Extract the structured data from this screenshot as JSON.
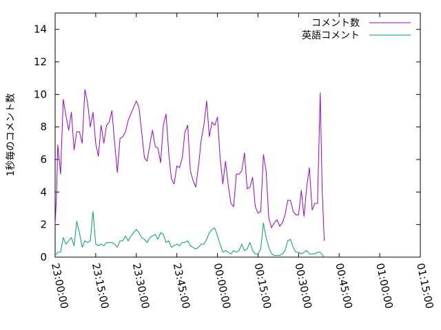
{
  "chart_data": {
    "type": "line",
    "title": "",
    "xlabel": "",
    "ylabel": "1秒毎のコメント数",
    "ylim": [
      0,
      15
    ],
    "yticks": [
      "0",
      "2",
      "4",
      "6",
      "8",
      "10",
      "12",
      "14"
    ],
    "xticks": [
      "23:00:00",
      "23:15:00",
      "23:30:00",
      "23:45:00",
      "00:00:00",
      "00:15:00",
      "00:30:00",
      "00:45:00",
      "01:00:00",
      "01:15:00"
    ],
    "xlim": [
      "23:00:00",
      "01:15:00"
    ],
    "legend_position": "top-right",
    "grid": false,
    "series": [
      {
        "name": "コメント数",
        "color": "#9400d3",
        "points": [
          [
            "23:00:00",
            2.0
          ],
          [
            "23:00:30",
            3.8
          ],
          [
            "23:01:00",
            6.9
          ],
          [
            "23:02:00",
            5.1
          ],
          [
            "23:03:00",
            9.7
          ],
          [
            "23:04:00",
            8.7
          ],
          [
            "23:05:00",
            7.8
          ],
          [
            "23:06:00",
            8.9
          ],
          [
            "23:07:00",
            6.6
          ],
          [
            "23:08:00",
            7.7
          ],
          [
            "23:09:00",
            7.7
          ],
          [
            "23:10:00",
            7.0
          ],
          [
            "23:11:00",
            10.3
          ],
          [
            "23:12:00",
            9.5
          ],
          [
            "23:13:00",
            8.0
          ],
          [
            "23:14:00",
            8.9
          ],
          [
            "23:15:00",
            7.0
          ],
          [
            "23:16:00",
            6.2
          ],
          [
            "23:17:00",
            8.1
          ],
          [
            "23:18:00",
            7.0
          ],
          [
            "23:19:00",
            8.1
          ],
          [
            "23:20:00",
            8.3
          ],
          [
            "23:21:00",
            9.0
          ],
          [
            "23:22:00",
            7.0
          ],
          [
            "23:23:00",
            5.2
          ],
          [
            "23:24:00",
            7.3
          ],
          [
            "23:25:00",
            7.4
          ],
          [
            "23:26:00",
            7.7
          ],
          [
            "23:27:00",
            8.4
          ],
          [
            "23:28:00",
            8.8
          ],
          [
            "23:29:00",
            9.2
          ],
          [
            "23:30:00",
            9.6
          ],
          [
            "23:31:00",
            9.2
          ],
          [
            "23:32:00",
            7.7
          ],
          [
            "23:33:00",
            6.1
          ],
          [
            "23:34:00",
            5.9
          ],
          [
            "23:35:00",
            6.9
          ],
          [
            "23:36:00",
            7.8
          ],
          [
            "23:37:00",
            6.8
          ],
          [
            "23:38:00",
            6.7
          ],
          [
            "23:39:00",
            5.8
          ],
          [
            "23:40:00",
            8.1
          ],
          [
            "23:41:00",
            8.8
          ],
          [
            "23:42:00",
            6.4
          ],
          [
            "23:43:00",
            4.8
          ],
          [
            "23:44:00",
            4.5
          ],
          [
            "23:45:00",
            5.6
          ],
          [
            "23:46:00",
            5.5
          ],
          [
            "23:47:00",
            6.1
          ],
          [
            "23:48:00",
            7.7
          ],
          [
            "23:49:00",
            8.1
          ],
          [
            "23:50:00",
            5.3
          ],
          [
            "23:51:00",
            4.7
          ],
          [
            "23:52:00",
            4.3
          ],
          [
            "23:53:00",
            5.6
          ],
          [
            "23:54:00",
            7.2
          ],
          [
            "23:55:00",
            8.1
          ],
          [
            "23:56:00",
            9.6
          ],
          [
            "23:57:00",
            7.4
          ],
          [
            "23:58:00",
            8.3
          ],
          [
            "23:59:00",
            8.1
          ],
          [
            "00:00:00",
            8.6
          ],
          [
            "00:01:00",
            6.1
          ],
          [
            "00:02:00",
            4.5
          ],
          [
            "00:03:00",
            5.9
          ],
          [
            "00:04:00",
            4.4
          ],
          [
            "00:05:00",
            3.3
          ],
          [
            "00:06:00",
            3.1
          ],
          [
            "00:07:00",
            5.1
          ],
          [
            "00:08:00",
            5.1
          ],
          [
            "00:09:00",
            5.3
          ],
          [
            "00:10:00",
            6.4
          ],
          [
            "00:11:00",
            4.2
          ],
          [
            "00:12:00",
            4.3
          ],
          [
            "00:13:00",
            4.9
          ],
          [
            "00:14:00",
            3.1
          ],
          [
            "00:15:00",
            2.7
          ],
          [
            "00:16:00",
            2.8
          ],
          [
            "00:17:00",
            6.3
          ],
          [
            "00:18:00",
            5.3
          ],
          [
            "00:19:00",
            2.4
          ],
          [
            "00:20:00",
            1.8
          ],
          [
            "00:21:00",
            2.1
          ],
          [
            "00:22:00",
            2.3
          ],
          [
            "00:23:00",
            1.9
          ],
          [
            "00:24:00",
            2.1
          ],
          [
            "00:25:00",
            2.6
          ],
          [
            "00:26:00",
            3.5
          ],
          [
            "00:27:00",
            3.5
          ],
          [
            "00:28:00",
            2.8
          ],
          [
            "00:29:00",
            2.6
          ],
          [
            "00:30:00",
            2.6
          ],
          [
            "00:31:00",
            4.1
          ],
          [
            "00:32:00",
            2.5
          ],
          [
            "00:33:00",
            4.3
          ],
          [
            "00:34:00",
            5.5
          ],
          [
            "00:35:00",
            2.9
          ],
          [
            "00:36:00",
            3.3
          ],
          [
            "00:37:00",
            3.3
          ],
          [
            "00:38:00",
            10.1
          ],
          [
            "00:38:45",
            4.0
          ],
          [
            "00:39:30",
            1.0
          ]
        ]
      },
      {
        "name": "英語コメント",
        "color": "#009e73",
        "points": [
          [
            "23:00:00",
            0.1
          ],
          [
            "23:01:00",
            0.3
          ],
          [
            "23:02:00",
            0.3
          ],
          [
            "23:03:00",
            1.2
          ],
          [
            "23:04:00",
            0.8
          ],
          [
            "23:05:00",
            1.0
          ],
          [
            "23:06:00",
            1.2
          ],
          [
            "23:07:00",
            0.7
          ],
          [
            "23:08:00",
            2.2
          ],
          [
            "23:09:00",
            1.5
          ],
          [
            "23:10:00",
            0.6
          ],
          [
            "23:11:00",
            1.0
          ],
          [
            "23:12:00",
            0.9
          ],
          [
            "23:13:00",
            1.0
          ],
          [
            "23:14:00",
            2.8
          ],
          [
            "23:15:00",
            0.8
          ],
          [
            "23:16:00",
            0.7
          ],
          [
            "23:17:00",
            0.8
          ],
          [
            "23:18:00",
            0.7
          ],
          [
            "23:19:00",
            0.9
          ],
          [
            "23:20:00",
            0.9
          ],
          [
            "23:21:00",
            0.9
          ],
          [
            "23:22:00",
            0.8
          ],
          [
            "23:23:00",
            0.6
          ],
          [
            "23:24:00",
            1.0
          ],
          [
            "23:25:00",
            1.0
          ],
          [
            "23:26:00",
            1.3
          ],
          [
            "23:27:00",
            1.0
          ],
          [
            "23:28:00",
            1.3
          ],
          [
            "23:29:00",
            1.5
          ],
          [
            "23:30:00",
            1.7
          ],
          [
            "23:31:00",
            1.5
          ],
          [
            "23:32:00",
            1.2
          ],
          [
            "23:33:00",
            1.1
          ],
          [
            "23:34:00",
            0.9
          ],
          [
            "23:35:00",
            1.2
          ],
          [
            "23:36:00",
            1.3
          ],
          [
            "23:37:00",
            1.4
          ],
          [
            "23:38:00",
            1.1
          ],
          [
            "23:39:00",
            1.5
          ],
          [
            "23:40:00",
            1.4
          ],
          [
            "23:41:00",
            0.9
          ],
          [
            "23:42:00",
            1.0
          ],
          [
            "23:43:00",
            0.6
          ],
          [
            "23:44:00",
            0.7
          ],
          [
            "23:45:00",
            0.8
          ],
          [
            "23:46:00",
            0.7
          ],
          [
            "23:47:00",
            0.9
          ],
          [
            "23:48:00",
            0.9
          ],
          [
            "23:49:00",
            1.0
          ],
          [
            "23:50:00",
            0.7
          ],
          [
            "23:51:00",
            0.6
          ],
          [
            "23:52:00",
            0.5
          ],
          [
            "23:53:00",
            0.6
          ],
          [
            "23:54:00",
            0.8
          ],
          [
            "23:55:00",
            0.8
          ],
          [
            "23:56:00",
            1.1
          ],
          [
            "23:57:00",
            1.5
          ],
          [
            "23:58:00",
            1.7
          ],
          [
            "23:59:00",
            1.8
          ],
          [
            "00:00:00",
            1.3
          ],
          [
            "00:01:00",
            0.8
          ],
          [
            "00:02:00",
            0.3
          ],
          [
            "00:03:00",
            0.4
          ],
          [
            "00:04:00",
            0.3
          ],
          [
            "00:05:00",
            0.2
          ],
          [
            "00:06:00",
            0.4
          ],
          [
            "00:07:00",
            0.3
          ],
          [
            "00:08:00",
            0.4
          ],
          [
            "00:09:00",
            0.8
          ],
          [
            "00:10:00",
            0.4
          ],
          [
            "00:11:00",
            0.5
          ],
          [
            "00:12:00",
            0.9
          ],
          [
            "00:13:00",
            0.4
          ],
          [
            "00:14:00",
            0.2
          ],
          [
            "00:15:00",
            0.2
          ],
          [
            "00:16:00",
            0.5
          ],
          [
            "00:17:00",
            2.1
          ],
          [
            "00:18:00",
            1.2
          ],
          [
            "00:19:00",
            0.6
          ],
          [
            "00:20:00",
            0.2
          ],
          [
            "00:21:00",
            0.1
          ],
          [
            "00:22:00",
            0.1
          ],
          [
            "00:23:00",
            0.1
          ],
          [
            "00:24:00",
            0.2
          ],
          [
            "00:25:00",
            0.4
          ],
          [
            "00:26:00",
            1.0
          ],
          [
            "00:27:00",
            1.1
          ],
          [
            "00:28:00",
            0.6
          ],
          [
            "00:29:00",
            0.3
          ],
          [
            "00:30:00",
            0.3
          ],
          [
            "00:31:00",
            0.2
          ],
          [
            "00:32:00",
            0.3
          ],
          [
            "00:33:00",
            0.4
          ],
          [
            "00:34:00",
            0.2
          ],
          [
            "00:35:00",
            0.2
          ],
          [
            "00:36:00",
            0.2
          ],
          [
            "00:37:00",
            0.3
          ],
          [
            "00:38:00",
            0.3
          ],
          [
            "00:39:00",
            0.1
          ],
          [
            "00:39:30",
            0.0
          ]
        ]
      }
    ]
  }
}
